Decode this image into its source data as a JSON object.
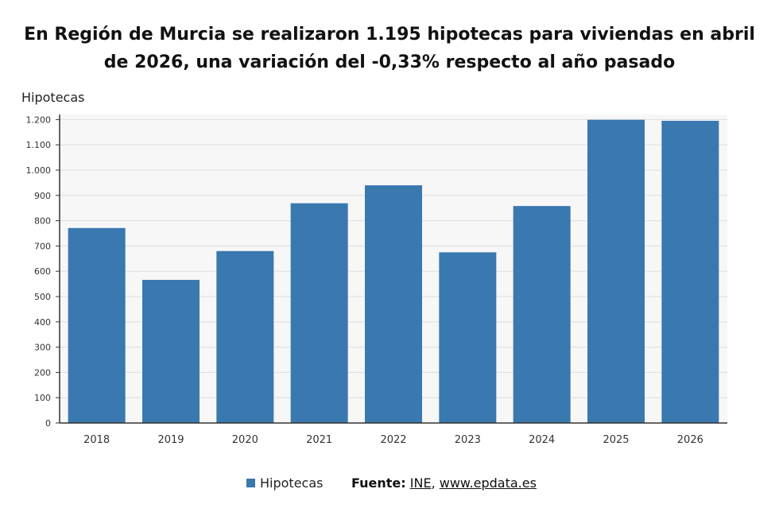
{
  "title": "En Región de Murcia se realizaron 1.195 hipotecas para viviendas en abril de 2026, una variación del -0,33% respecto al año pasado",
  "unit_label": "Hipotecas",
  "legend": {
    "label": "Hipotecas",
    "color": "#3a78b0"
  },
  "source": {
    "label": "Fuente:",
    "links": [
      "INE",
      "www.epdata.es"
    ],
    "separator": ","
  },
  "colors": {
    "bar": "#3a78b0",
    "plot_bg": "#f7f7f7",
    "grid": "#dddddd",
    "axis": "#333333"
  },
  "chart_data": {
    "type": "bar",
    "categories": [
      "2018",
      "2019",
      "2020",
      "2021",
      "2022",
      "2023",
      "2024",
      "2025",
      "2026"
    ],
    "series": [
      {
        "name": "Hipotecas",
        "values": [
          771,
          566,
          680,
          869,
          940,
          675,
          858,
          1199,
          1195
        ]
      }
    ],
    "ylim": [
      0,
      1220
    ],
    "yticks": [
      0,
      100,
      200,
      300,
      400,
      500,
      600,
      700,
      800,
      900,
      1000,
      1100,
      1200
    ],
    "ytick_labels": [
      "0",
      "100",
      "200",
      "300",
      "400",
      "500",
      "600",
      "700",
      "800",
      "900",
      "1.000",
      "1.100",
      "1.200"
    ],
    "ylabel": "Hipotecas",
    "xlabel": "",
    "grid": true,
    "legend_position": "bottom"
  }
}
